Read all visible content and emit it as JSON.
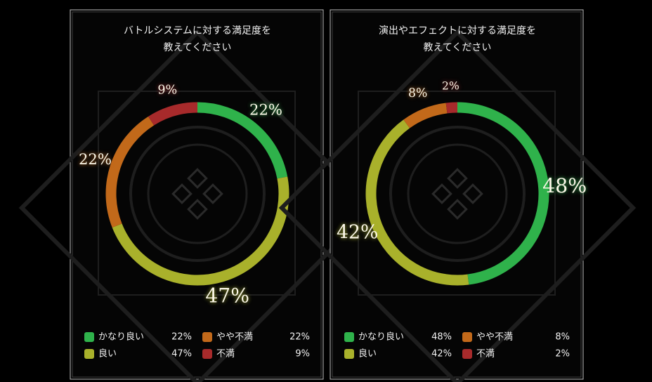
{
  "chart_data": [
    {
      "type": "pie",
      "title": "バトルシステムに対する満足度を\n教えてください",
      "categories": [
        "かなり良い",
        "良い",
        "やや不満",
        "不満"
      ],
      "values": [
        22,
        47,
        22,
        9
      ],
      "value_labels": [
        "22%",
        "47%",
        "22%",
        "9%"
      ],
      "colors": [
        "#2fb24b",
        "#a9b12b",
        "#c2691a",
        "#a72a2b"
      ]
    },
    {
      "type": "pie",
      "title": "演出やエフェクトに対する満足度を\n教えてください",
      "categories": [
        "かなり良い",
        "良い",
        "やや不満",
        "不満"
      ],
      "values": [
        48,
        42,
        8,
        2
      ],
      "value_labels": [
        "48%",
        "42%",
        "8%",
        "2%"
      ],
      "colors": [
        "#2fb24b",
        "#a9b12b",
        "#c2691a",
        "#a72a2b"
      ]
    }
  ]
}
